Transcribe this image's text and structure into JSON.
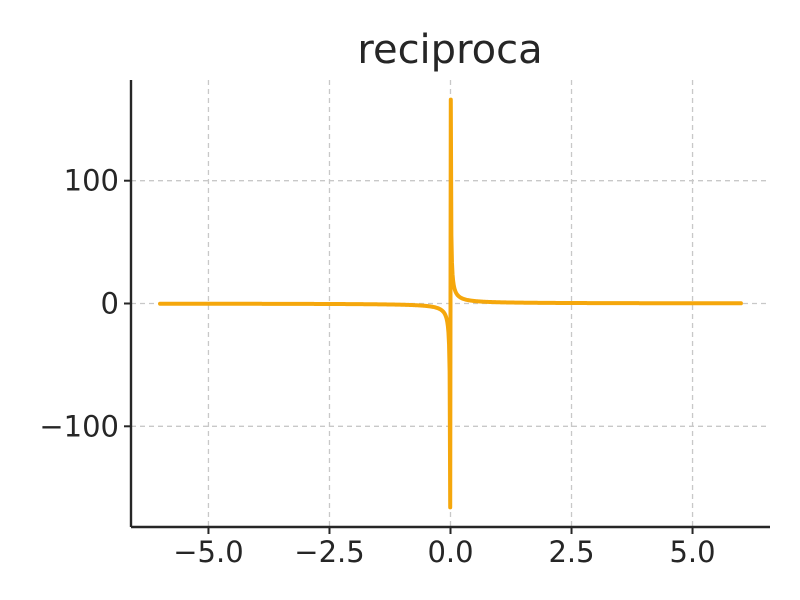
{
  "chart_data": {
    "type": "line",
    "title": "reciproca",
    "xlabel": "",
    "ylabel": "",
    "xlim": [
      -6.6,
      6.6
    ],
    "ylim": [
      -182,
      182
    ],
    "x_ticks": [
      -5.0,
      -2.5,
      0.0,
      2.5,
      5.0
    ],
    "x_tick_labels": [
      "−5.0",
      "−2.5",
      "0.0",
      "2.5",
      "5.0"
    ],
    "y_ticks": [
      -100,
      0,
      100
    ],
    "y_tick_labels": [
      "−100",
      "0",
      "100"
    ],
    "grid": true,
    "color": "#f5a70c",
    "series": [
      {
        "function": "1/x",
        "x_range": [
          -6,
          6
        ],
        "peak_y": 166,
        "trough_y": -166
      }
    ]
  }
}
